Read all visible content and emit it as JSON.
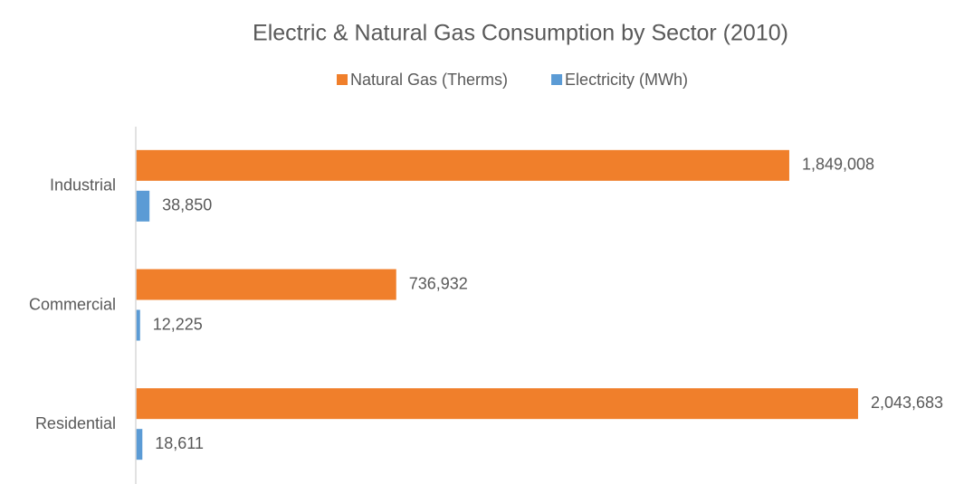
{
  "chart_data": {
    "type": "bar",
    "orientation": "horizontal",
    "title": "Electric & Natural Gas Consumption by Sector (2010)",
    "categories": [
      "Industrial",
      "Commercial",
      "Residential"
    ],
    "series": [
      {
        "name": "Natural Gas (Therms)",
        "color": "#f07f2b",
        "values": [
          1849008,
          736932,
          2043683
        ],
        "value_labels": [
          "1,849,008",
          "736,932",
          "2,043,683"
        ]
      },
      {
        "name": "Electricity (MWh)",
        "color": "#5b9bd5",
        "values": [
          38850,
          12225,
          18611
        ],
        "value_labels": [
          "38,850",
          "12,225",
          "18,611"
        ]
      }
    ],
    "xlim": [
      0,
      2200000
    ],
    "legend": "top"
  }
}
